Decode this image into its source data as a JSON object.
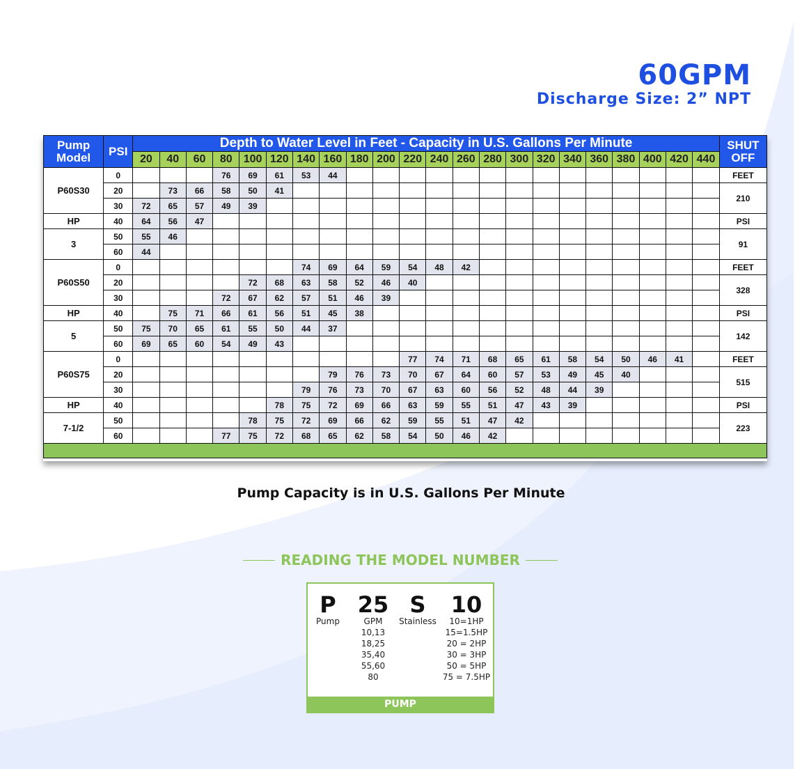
{
  "header": {
    "title": "60GPM",
    "subtitle": "Discharge Size: 2” NPT"
  },
  "table": {
    "col_headers": {
      "pump_model": [
        "Pump",
        "Model"
      ],
      "psi": "PSI",
      "title": "Depth to Water Level in Feet - Capacity in U.S. Gallons Per Minute",
      "shutoff": [
        "SHUT",
        "OFF"
      ],
      "depths": [
        "20",
        "40",
        "60",
        "80",
        "100",
        "120",
        "140",
        "160",
        "180",
        "200",
        "220",
        "240",
        "260",
        "280",
        "300",
        "320",
        "340",
        "360",
        "380",
        "400",
        "420",
        "440"
      ]
    },
    "groups": [
      {
        "model": "P60S30",
        "hp_label": "HP",
        "hp": "3",
        "shutoff": [
          "FEET",
          "210",
          "PSI",
          "91"
        ],
        "rows": [
          {
            "psi": "0",
            "values": [
              "",
              "",
              "",
              "76",
              "69",
              "61",
              "53",
              "44",
              "",
              "",
              "",
              "",
              "",
              "",
              "",
              "",
              "",
              "",
              "",
              "",
              "",
              ""
            ]
          },
          {
            "psi": "20",
            "values": [
              "",
              "73",
              "66",
              "58",
              "50",
              "41",
              "",
              "",
              "",
              "",
              "",
              "",
              "",
              "",
              "",
              "",
              "",
              "",
              "",
              "",
              "",
              ""
            ]
          },
          {
            "psi": "30",
            "values": [
              "72",
              "65",
              "57",
              "49",
              "39",
              "",
              "",
              "",
              "",
              "",
              "",
              "",
              "",
              "",
              "",
              "",
              "",
              "",
              "",
              "",
              "",
              ""
            ]
          },
          {
            "psi": "40",
            "values": [
              "64",
              "56",
              "47",
              "",
              "",
              "",
              "",
              "",
              "",
              "",
              "",
              "",
              "",
              "",
              "",
              "",
              "",
              "",
              "",
              "",
              "",
              ""
            ]
          },
          {
            "psi": "50",
            "values": [
              "55",
              "46",
              "",
              "",
              "",
              "",
              "",
              "",
              "",
              "",
              "",
              "",
              "",
              "",
              "",
              "",
              "",
              "",
              "",
              "",
              "",
              ""
            ]
          },
          {
            "psi": "60",
            "values": [
              "44",
              "",
              "",
              "",
              "",
              "",
              "",
              "",
              "",
              "",
              "",
              "",
              "",
              "",
              "",
              "",
              "",
              "",
              "",
              "",
              "",
              ""
            ]
          }
        ]
      },
      {
        "model": "P60S50",
        "hp_label": "HP",
        "hp": "5",
        "shutoff": [
          "FEET",
          "328",
          "PSI",
          "142"
        ],
        "rows": [
          {
            "psi": "0",
            "values": [
              "",
              "",
              "",
              "",
              "",
              "",
              "74",
              "69",
              "64",
              "59",
              "54",
              "48",
              "42",
              "",
              "",
              "",
              "",
              "",
              "",
              "",
              "",
              ""
            ]
          },
          {
            "psi": "20",
            "values": [
              "",
              "",
              "",
              "",
              "72",
              "68",
              "63",
              "58",
              "52",
              "46",
              "40",
              "",
              "",
              "",
              "",
              "",
              "",
              "",
              "",
              "",
              "",
              ""
            ]
          },
          {
            "psi": "30",
            "values": [
              "",
              "",
              "",
              "72",
              "67",
              "62",
              "57",
              "51",
              "46",
              "39",
              "",
              "",
              "",
              "",
              "",
              "",
              "",
              "",
              "",
              "",
              "",
              ""
            ]
          },
          {
            "psi": "40",
            "values": [
              "",
              "75",
              "71",
              "66",
              "61",
              "56",
              "51",
              "45",
              "38",
              "",
              "",
              "",
              "",
              "",
              "",
              "",
              "",
              "",
              "",
              "",
              "",
              ""
            ]
          },
          {
            "psi": "50",
            "values": [
              "75",
              "70",
              "65",
              "61",
              "55",
              "50",
              "44",
              "37",
              "",
              "",
              "",
              "",
              "",
              "",
              "",
              "",
              "",
              "",
              "",
              "",
              "",
              ""
            ]
          },
          {
            "psi": "60",
            "values": [
              "69",
              "65",
              "60",
              "54",
              "49",
              "43",
              "",
              "",
              "",
              "",
              "",
              "",
              "",
              "",
              "",
              "",
              "",
              "",
              "",
              "",
              "",
              ""
            ]
          }
        ]
      },
      {
        "model": "P60S75",
        "hp_label": "HP",
        "hp": "7-1/2",
        "shutoff": [
          "FEET",
          "515",
          "PSI",
          "223"
        ],
        "rows": [
          {
            "psi": "0",
            "values": [
              "",
              "",
              "",
              "",
              "",
              "",
              "",
              "",
              "",
              "",
              "77",
              "74",
              "71",
              "68",
              "65",
              "61",
              "58",
              "54",
              "50",
              "46",
              "41",
              ""
            ]
          },
          {
            "psi": "20",
            "values": [
              "",
              "",
              "",
              "",
              "",
              "",
              "",
              "79",
              "76",
              "73",
              "70",
              "67",
              "64",
              "60",
              "57",
              "53",
              "49",
              "45",
              "40",
              "",
              "",
              ""
            ]
          },
          {
            "psi": "30",
            "values": [
              "",
              "",
              "",
              "",
              "",
              "",
              "79",
              "76",
              "73",
              "70",
              "67",
              "63",
              "60",
              "56",
              "52",
              "48",
              "44",
              "39",
              "",
              "",
              "",
              ""
            ]
          },
          {
            "psi": "40",
            "values": [
              "",
              "",
              "",
              "",
              "",
              "78",
              "75",
              "72",
              "69",
              "66",
              "63",
              "59",
              "55",
              "51",
              "47",
              "43",
              "39",
              "",
              "",
              "",
              "",
              ""
            ]
          },
          {
            "psi": "50",
            "values": [
              "",
              "",
              "",
              "",
              "78",
              "75",
              "72",
              "69",
              "66",
              "62",
              "59",
              "55",
              "51",
              "47",
              "42",
              "",
              "",
              "",
              "",
              "",
              "",
              ""
            ]
          },
          {
            "psi": "60",
            "values": [
              "",
              "",
              "",
              "77",
              "75",
              "72",
              "68",
              "65",
              "62",
              "58",
              "54",
              "50",
              "46",
              "42",
              "",
              "",
              "",
              "",
              "",
              "",
              "",
              ""
            ]
          }
        ]
      }
    ]
  },
  "capacity_note": "Pump Capacity is in U.S. Gallons Per Minute",
  "reading": {
    "title": "READING THE MODEL NUMBER",
    "columns": [
      {
        "letter": "P",
        "label": "Pump",
        "lines": []
      },
      {
        "letter": "25",
        "label": "GPM",
        "lines": [
          "10,13",
          "18,25",
          "35,40",
          "55,60",
          "80"
        ]
      },
      {
        "letter": "S",
        "label": "Stainless",
        "lines": []
      },
      {
        "letter": "10",
        "label": "10=1HP",
        "lines": [
          "15=1.5HP",
          "20 = 2HP",
          "30 = 3HP",
          "50 = 5HP",
          "75 = 7.5HP"
        ]
      }
    ],
    "footer": "PUMP"
  },
  "colors": {
    "blue": "#2158ea",
    "title_blue": "#1f4fe0",
    "green": "#8ec55a",
    "cell_fill": "#e3e5ee"
  }
}
